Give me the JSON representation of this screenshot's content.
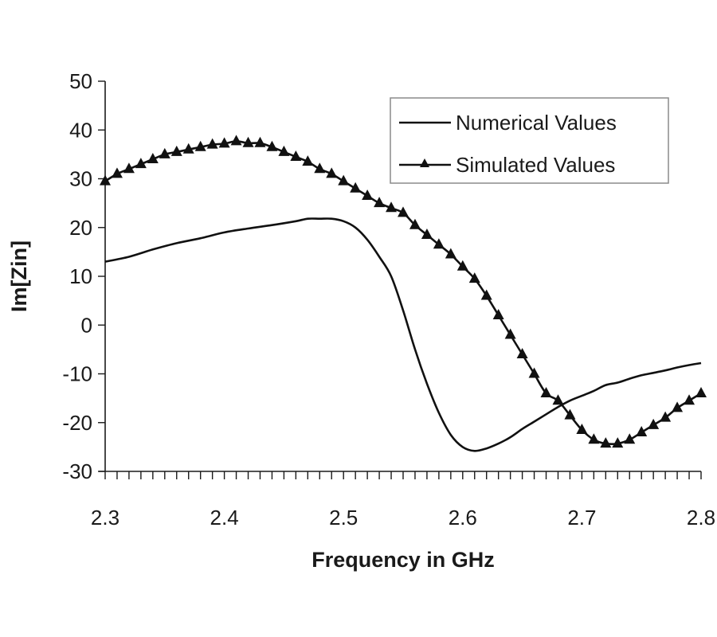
{
  "chart_data": {
    "type": "line",
    "title": "",
    "xlabel": "Frequency in GHz",
    "ylabel": "Im[Zin]",
    "xlim": [
      2.3,
      2.8
    ],
    "ylim": [
      -30,
      50
    ],
    "x_ticks": [
      2.3,
      2.4,
      2.5,
      2.6,
      2.7,
      2.8
    ],
    "x_tick_labels": [
      "2.3",
      "2.4",
      "2.5",
      "2.6",
      "2.7",
      "2.8"
    ],
    "x_minor_tick_step": 0.01,
    "y_ticks": [
      50,
      40,
      30,
      20,
      10,
      0,
      -10,
      -20,
      -30
    ],
    "y_tick_labels": [
      "50",
      "40",
      "30",
      "20",
      "10",
      "0",
      "-10",
      "-20",
      "-30"
    ],
    "grid": false,
    "legend_position": "top-right",
    "series": [
      {
        "name": "Numerical Values",
        "marker": "none",
        "color": "#111111",
        "x": [
          2.3,
          2.32,
          2.34,
          2.36,
          2.38,
          2.4,
          2.42,
          2.44,
          2.46,
          2.47,
          2.48,
          2.49,
          2.5,
          2.51,
          2.52,
          2.53,
          2.54,
          2.55,
          2.56,
          2.57,
          2.58,
          2.59,
          2.6,
          2.61,
          2.62,
          2.63,
          2.64,
          2.65,
          2.66,
          2.67,
          2.68,
          2.69,
          2.7,
          2.71,
          2.72,
          2.73,
          2.74,
          2.75,
          2.76,
          2.77,
          2.78,
          2.79,
          2.8
        ],
        "y": [
          13,
          14,
          15.5,
          16.8,
          17.8,
          19,
          19.8,
          20.5,
          21.3,
          21.8,
          21.8,
          21.8,
          21.3,
          20,
          17.5,
          14,
          10,
          3,
          -5,
          -12,
          -18,
          -22.5,
          -25,
          -25.8,
          -25.3,
          -24.3,
          -23,
          -21.3,
          -19.8,
          -18.3,
          -16.8,
          -15.5,
          -14.5,
          -13.5,
          -12.3,
          -11.8,
          -11,
          -10.3,
          -9.8,
          -9.3,
          -8.7,
          -8.2,
          -7.8
        ]
      },
      {
        "name": "Simulated Values",
        "marker": "triangle",
        "color": "#111111",
        "x": [
          2.3,
          2.31,
          2.32,
          2.33,
          2.34,
          2.35,
          2.36,
          2.37,
          2.38,
          2.39,
          2.4,
          2.41,
          2.42,
          2.43,
          2.44,
          2.45,
          2.46,
          2.47,
          2.48,
          2.49,
          2.5,
          2.51,
          2.52,
          2.53,
          2.54,
          2.55,
          2.56,
          2.57,
          2.58,
          2.59,
          2.6,
          2.61,
          2.62,
          2.63,
          2.64,
          2.65,
          2.66,
          2.67,
          2.68,
          2.69,
          2.7,
          2.71,
          2.72,
          2.73,
          2.74,
          2.75,
          2.76,
          2.77,
          2.78,
          2.79,
          2.8
        ],
        "y": [
          29.5,
          31,
          32,
          33,
          34,
          35,
          35.5,
          36,
          36.5,
          37,
          37.2,
          37.7,
          37.3,
          37.3,
          36.5,
          35.5,
          34.5,
          33.5,
          32,
          31,
          29.5,
          28,
          26.5,
          25,
          24,
          23,
          20.5,
          18.5,
          16.5,
          14.5,
          12,
          9.5,
          6,
          2,
          -2,
          -6,
          -10,
          -14,
          -15.5,
          -18.5,
          -21.5,
          -23.5,
          -24.3,
          -24.3,
          -23.5,
          -22,
          -20.5,
          -19,
          -17,
          -15.5,
          -14
        ]
      }
    ]
  }
}
